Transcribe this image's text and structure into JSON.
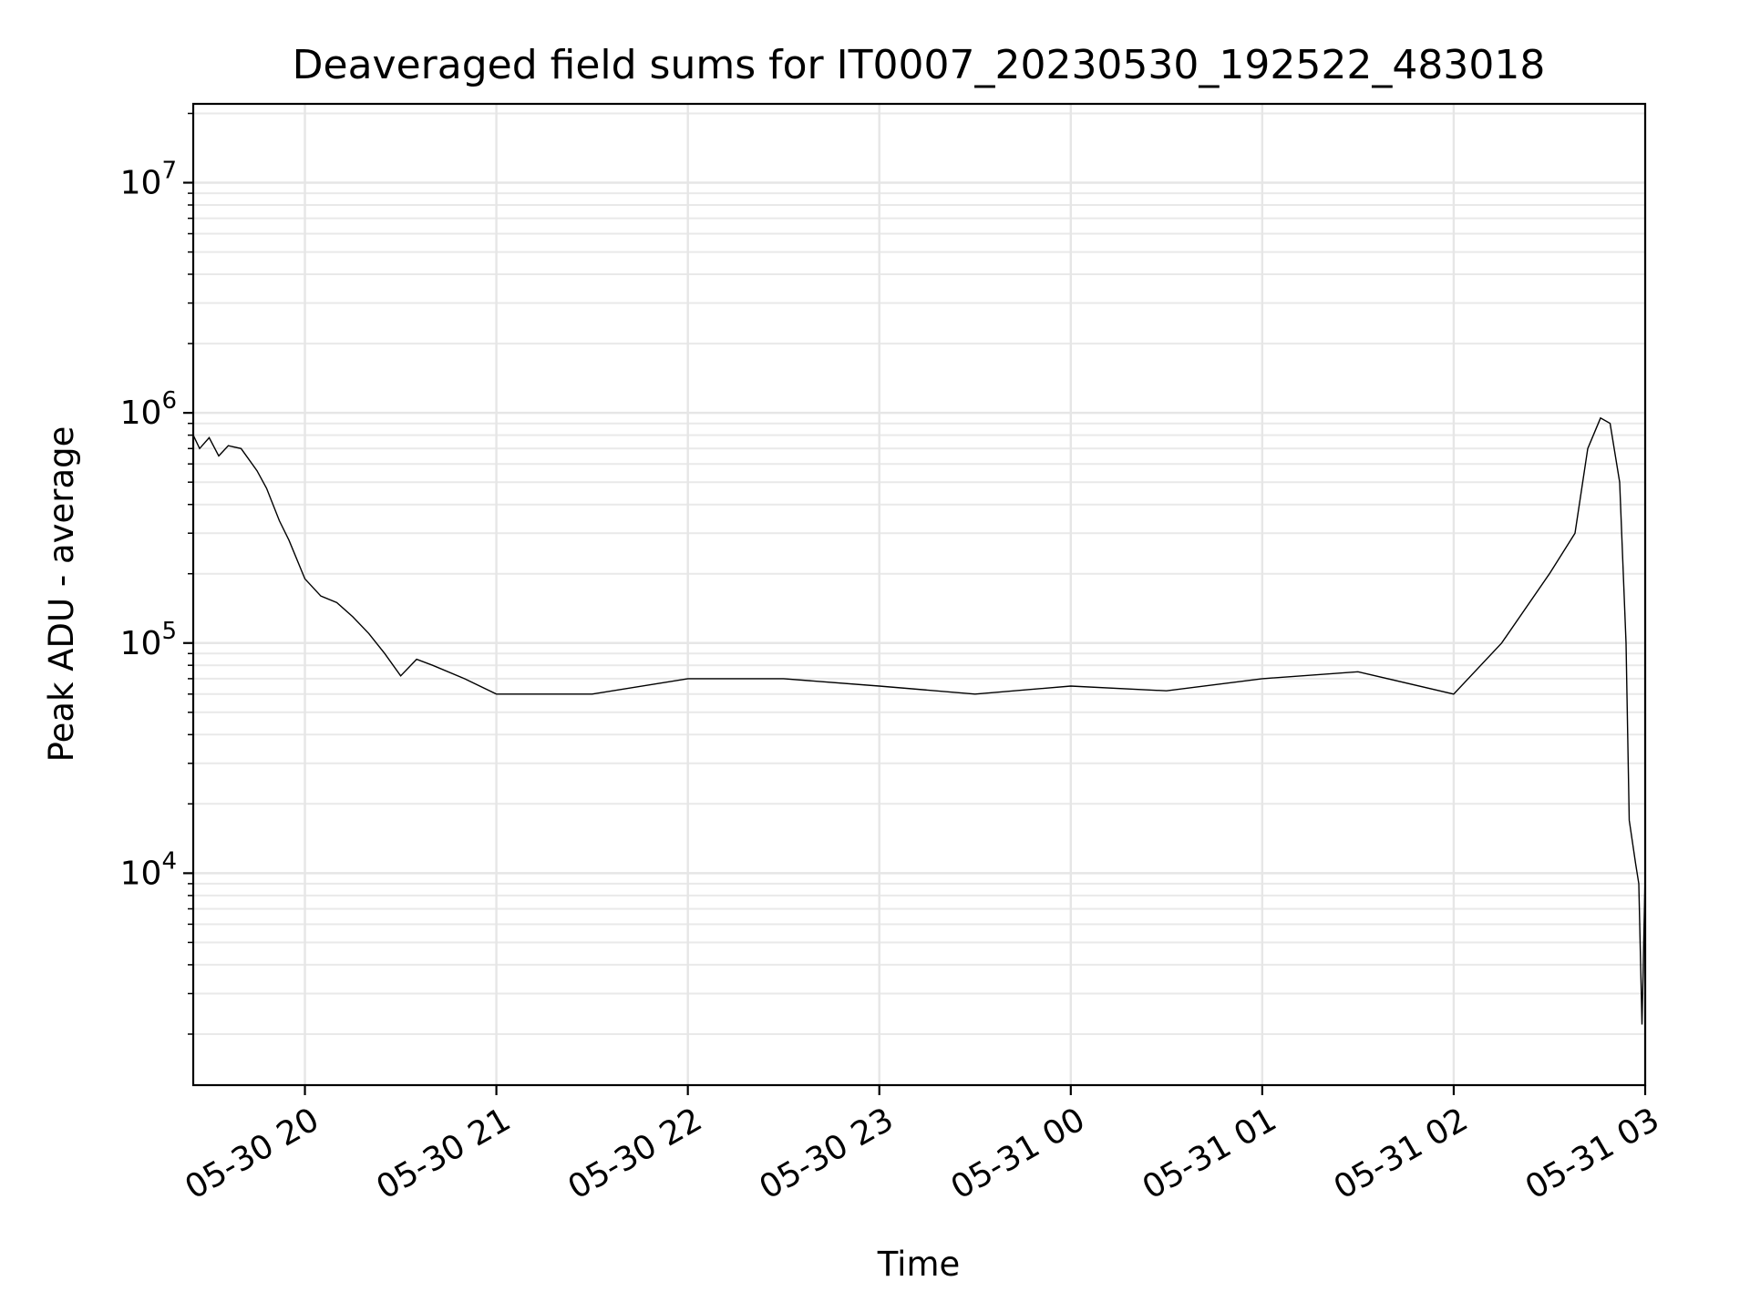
{
  "chart_data": {
    "type": "line",
    "title": "Deaveraged field sums for IT0007_20230530_192522_483018",
    "xlabel": "Time",
    "ylabel": "Peak ADU - average",
    "yscale": "log",
    "ylim": [
      1200,
      22000000
    ],
    "xlim": [
      "2023-05-30 19:25:00",
      "2023-05-31 03:00:00"
    ],
    "x_ticks": [
      {
        "t": "2023-05-30 20:00",
        "label": "05-30 20"
      },
      {
        "t": "2023-05-30 21:00",
        "label": "05-30 21"
      },
      {
        "t": "2023-05-30 22:00",
        "label": "05-30 22"
      },
      {
        "t": "2023-05-30 23:00",
        "label": "05-30 23"
      },
      {
        "t": "2023-05-31 00:00",
        "label": "05-31 00"
      },
      {
        "t": "2023-05-31 01:00",
        "label": "05-31 01"
      },
      {
        "t": "2023-05-31 02:00",
        "label": "05-31 02"
      },
      {
        "t": "2023-05-31 03:00",
        "label": "05-31 03"
      }
    ],
    "y_ticks": [
      {
        "value": 10000,
        "base": "10",
        "exp": "4"
      },
      {
        "value": 100000,
        "base": "10",
        "exp": "5"
      },
      {
        "value": 1000000,
        "base": "10",
        "exp": "6"
      },
      {
        "value": 10000000,
        "base": "10",
        "exp": "7"
      }
    ],
    "grid": true,
    "line_color": "#000000",
    "series": [
      {
        "points": [
          [
            "2023-05-30 19:25",
            800000
          ],
          [
            "2023-05-30 19:27",
            700000
          ],
          [
            "2023-05-30 19:30",
            780000
          ],
          [
            "2023-05-30 19:33",
            650000
          ],
          [
            "2023-05-30 19:36",
            720000
          ],
          [
            "2023-05-30 19:40",
            700000
          ],
          [
            "2023-05-30 19:45",
            560000
          ],
          [
            "2023-05-30 19:48",
            470000
          ],
          [
            "2023-05-30 19:52",
            340000
          ],
          [
            "2023-05-30 19:55",
            280000
          ],
          [
            "2023-05-30 20:00",
            190000
          ],
          [
            "2023-05-30 20:05",
            160000
          ],
          [
            "2023-05-30 20:10",
            150000
          ],
          [
            "2023-05-30 20:15",
            130000
          ],
          [
            "2023-05-30 20:20",
            110000
          ],
          [
            "2023-05-30 20:25",
            90000
          ],
          [
            "2023-05-30 20:30",
            72000
          ],
          [
            "2023-05-30 20:35",
            85000
          ],
          [
            "2023-05-30 20:40",
            80000
          ],
          [
            "2023-05-30 20:50",
            70000
          ],
          [
            "2023-05-30 21:00",
            60000
          ],
          [
            "2023-05-30 21:30",
            60000
          ],
          [
            "2023-05-30 22:00",
            70000
          ],
          [
            "2023-05-30 22:30",
            70000
          ],
          [
            "2023-05-30 23:00",
            65000
          ],
          [
            "2023-05-30 23:30",
            60000
          ],
          [
            "2023-05-31 00:00",
            65000
          ],
          [
            "2023-05-31 00:30",
            62000
          ],
          [
            "2023-05-31 01:00",
            70000
          ],
          [
            "2023-05-31 01:30",
            75000
          ],
          [
            "2023-05-31 02:00",
            60000
          ],
          [
            "2023-05-31 02:15",
            100000
          ],
          [
            "2023-05-31 02:30",
            200000
          ],
          [
            "2023-05-31 02:38",
            300000
          ],
          [
            "2023-05-31 02:42",
            700000
          ],
          [
            "2023-05-31 02:46",
            950000
          ],
          [
            "2023-05-31 02:49",
            900000
          ],
          [
            "2023-05-31 02:52",
            500000
          ],
          [
            "2023-05-31 02:54",
            100000
          ],
          [
            "2023-05-31 02:55",
            17000
          ],
          [
            "2023-05-31 02:57",
            11000
          ],
          [
            "2023-05-31 02:58",
            9000
          ],
          [
            "2023-05-31 02:59",
            2200
          ],
          [
            "2023-05-31 03:00",
            10000
          ]
        ]
      }
    ]
  }
}
